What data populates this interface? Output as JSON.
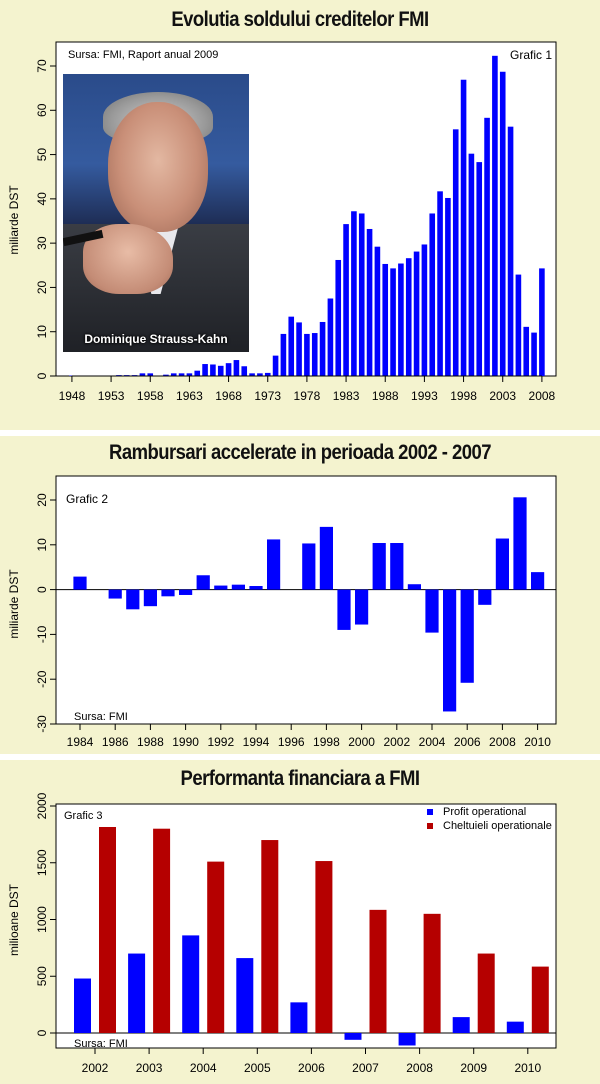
{
  "panels": [
    {
      "title": "Evolutia soldului creditelor FMI"
    },
    {
      "title": "Rambursari accelerate in perioada 2002 - 2007"
    },
    {
      "title": "Performanta financiara a FMI"
    }
  ],
  "photo": {
    "caption": "Dominique Strauss-Kahn"
  },
  "chart_data": [
    {
      "type": "bar",
      "title": "Evolutia soldului creditelor FMI",
      "tag": "Grafic 1",
      "source": "Sursa: FMI, Raport anual 2009",
      "ylabel": "miliarde DST",
      "ylim": [
        0,
        72
      ],
      "yticks": [
        0,
        10,
        20,
        30,
        40,
        50,
        60,
        70
      ],
      "xticks": [
        1948,
        1953,
        1958,
        1963,
        1968,
        1973,
        1978,
        1983,
        1988,
        1993,
        1998,
        2003,
        2008
      ],
      "x": [
        1948,
        1949,
        1950,
        1951,
        1952,
        1953,
        1954,
        1955,
        1956,
        1957,
        1958,
        1959,
        1960,
        1961,
        1962,
        1963,
        1964,
        1965,
        1966,
        1967,
        1968,
        1969,
        1970,
        1971,
        1972,
        1973,
        1974,
        1975,
        1976,
        1977,
        1978,
        1979,
        1980,
        1981,
        1982,
        1983,
        1984,
        1985,
        1986,
        1987,
        1988,
        1989,
        1990,
        1991,
        1992,
        1993,
        1994,
        1995,
        1996,
        1997,
        1998,
        1999,
        2000,
        2001,
        2002,
        2003,
        2004,
        2005,
        2006,
        2007,
        2008,
        2009
      ],
      "values": [
        0.1,
        0.1,
        0.1,
        0.1,
        0.1,
        0.1,
        0.2,
        0.2,
        0.2,
        0.6,
        0.6,
        0.1,
        0.3,
        0.6,
        0.6,
        0.6,
        1.2,
        2.7,
        2.6,
        2.3,
        2.9,
        3.6,
        2.2,
        0.6,
        0.6,
        0.7,
        4.6,
        9.5,
        13.4,
        12.1,
        9.5,
        9.7,
        12.2,
        17.5,
        26.2,
        34.3,
        37.2,
        36.7,
        33.2,
        29.2,
        25.3,
        24.3,
        25.4,
        26.6,
        28.1,
        29.7,
        36.7,
        41.7,
        40.2,
        55.7,
        66.9,
        50.2,
        48.3,
        58.3,
        72.3,
        68.7,
        56.3,
        22.9,
        11.1,
        9.8,
        24.3,
        0
      ]
    },
    {
      "type": "bar",
      "title": "Rambursari accelerate in perioada 2002 - 2007",
      "tag": "Grafic 2",
      "source": "Sursa: FMI",
      "ylabel": "miliarde DST",
      "ylim": [
        -30,
        23
      ],
      "yticks": [
        -30,
        -20,
        -10,
        0,
        10,
        20
      ],
      "xticks": [
        1984,
        1986,
        1988,
        1990,
        1992,
        1994,
        1996,
        1998,
        2000,
        2002,
        2004,
        2006,
        2008,
        2010
      ],
      "x": [
        1984,
        1985,
        1986,
        1987,
        1988,
        1989,
        1990,
        1991,
        1992,
        1993,
        1994,
        1995,
        1996,
        1997,
        1998,
        1999,
        2000,
        2001,
        2002,
        2003,
        2004,
        2005,
        2006,
        2007,
        2008,
        2009,
        2010
      ],
      "values": [
        2.9,
        0,
        -2.0,
        -4.4,
        -3.7,
        -1.5,
        -1.2,
        3.2,
        0.9,
        1.1,
        0.8,
        11.2,
        0,
        10.3,
        14.0,
        -9.0,
        -7.8,
        10.4,
        10.4,
        1.2,
        -9.6,
        -27.2,
        -20.8,
        -3.4,
        11.4,
        20.6,
        3.9
      ]
    },
    {
      "type": "bar",
      "title": "Performanta financiara a FMI",
      "tag": "Grafic 3",
      "source": "Sursa: FMI",
      "ylabel": "milioane DST",
      "ylim": [
        -100,
        2000
      ],
      "yticks": [
        0,
        500,
        1000,
        1500,
        2000
      ],
      "categories": [
        "2002",
        "2003",
        "2004",
        "2005",
        "2006",
        "2007",
        "2008",
        "2009",
        "2010"
      ],
      "series": [
        {
          "name": "Profit operational",
          "color": "#0000ff",
          "values": [
            480,
            700,
            860,
            660,
            270,
            -60,
            -110,
            140,
            100
          ]
        },
        {
          "name": "Cheltuieli operationale",
          "color": "#b50000",
          "values": [
            1815,
            1800,
            1510,
            1700,
            1515,
            1085,
            1050,
            700,
            585
          ]
        }
      ]
    }
  ]
}
